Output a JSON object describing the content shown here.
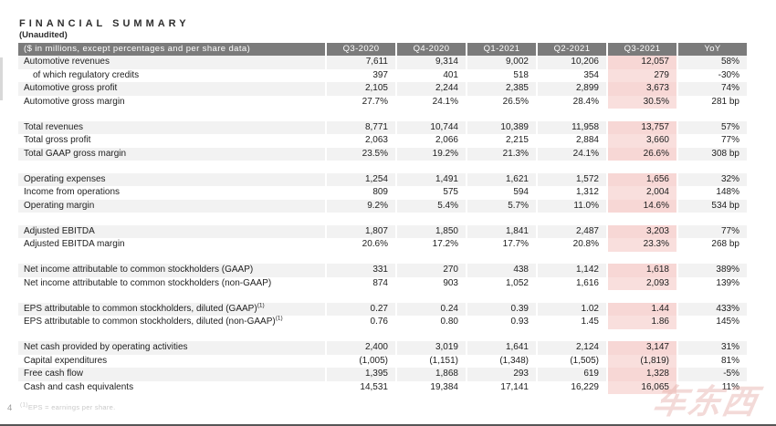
{
  "page_number": "4",
  "title": "FINANCIAL SUMMARY",
  "subtitle": "(Unaudited)",
  "footnote": {
    "marker": "(1)",
    "text": "EPS = earnings per share."
  },
  "watermark": {
    "text": "车东西"
  },
  "colors": {
    "header_bg": "#7b7b7b",
    "stripe_row": "#f2f2f2",
    "highlight_cell": "#f7d7d5",
    "text": "#1e1e1e"
  },
  "table": {
    "columns": [
      "($ in millions, except percentages and per share data)",
      "Q3-2020",
      "Q4-2020",
      "Q1-2021",
      "Q2-2021",
      "Q3-2021",
      "YoY"
    ],
    "highlight_column": "Q3-2021",
    "highlight_col_index": 4,
    "sections": [
      {
        "rows": [
          {
            "label": "Automotive revenues",
            "values": [
              "7,611",
              "9,314",
              "9,002",
              "10,206",
              "12,057",
              "58%"
            ]
          },
          {
            "label": "of which regulatory credits",
            "indent": true,
            "values": [
              "397",
              "401",
              "518",
              "354",
              "279",
              "-30%"
            ]
          },
          {
            "label": "Automotive gross profit",
            "values": [
              "2,105",
              "2,244",
              "2,385",
              "2,899",
              "3,673",
              "74%"
            ]
          },
          {
            "label": "Automotive gross margin",
            "values": [
              "27.7%",
              "24.1%",
              "26.5%",
              "28.4%",
              "30.5%",
              "281 bp"
            ]
          }
        ]
      },
      {
        "rows": [
          {
            "label": "Total revenues",
            "values": [
              "8,771",
              "10,744",
              "10,389",
              "11,958",
              "13,757",
              "57%"
            ]
          },
          {
            "label": "Total gross profit",
            "values": [
              "2,063",
              "2,066",
              "2,215",
              "2,884",
              "3,660",
              "77%"
            ]
          },
          {
            "label": "Total GAAP gross margin",
            "values": [
              "23.5%",
              "19.2%",
              "21.3%",
              "24.1%",
              "26.6%",
              "308 bp"
            ]
          }
        ]
      },
      {
        "rows": [
          {
            "label": "Operating expenses",
            "values": [
              "1,254",
              "1,491",
              "1,621",
              "1,572",
              "1,656",
              "32%"
            ]
          },
          {
            "label": "Income from operations",
            "values": [
              "809",
              "575",
              "594",
              "1,312",
              "2,004",
              "148%"
            ]
          },
          {
            "label": "Operating margin",
            "values": [
              "9.2%",
              "5.4%",
              "5.7%",
              "11.0%",
              "14.6%",
              "534 bp"
            ]
          }
        ]
      },
      {
        "rows": [
          {
            "label": "Adjusted EBITDA",
            "values": [
              "1,807",
              "1,850",
              "1,841",
              "2,487",
              "3,203",
              "77%"
            ]
          },
          {
            "label": "Adjusted EBITDA margin",
            "values": [
              "20.6%",
              "17.2%",
              "17.7%",
              "20.8%",
              "23.3%",
              "268 bp"
            ]
          }
        ]
      },
      {
        "rows": [
          {
            "label": "Net income attributable to common stockholders (GAAP)",
            "values": [
              "331",
              "270",
              "438",
              "1,142",
              "1,618",
              "389%"
            ]
          },
          {
            "label": "Net income attributable to common stockholders (non-GAAP)",
            "values": [
              "874",
              "903",
              "1,052",
              "1,616",
              "2,093",
              "139%"
            ]
          }
        ]
      },
      {
        "rows": [
          {
            "label": "EPS attributable to common stockholders, diluted (GAAP)",
            "footnote_marker": "(1)",
            "values": [
              "0.27",
              "0.24",
              "0.39",
              "1.02",
              "1.44",
              "433%"
            ]
          },
          {
            "label": "EPS attributable to common stockholders, diluted (non-GAAP)",
            "footnote_marker": "(1)",
            "values": [
              "0.76",
              "0.80",
              "0.93",
              "1.45",
              "1.86",
              "145%"
            ]
          }
        ]
      },
      {
        "rows": [
          {
            "label": "Net cash provided by operating activities",
            "values": [
              "2,400",
              "3,019",
              "1,641",
              "2,124",
              "3,147",
              "31%"
            ]
          },
          {
            "label": "Capital expenditures",
            "values": [
              "(1,005)",
              "(1,151)",
              "(1,348)",
              "(1,505)",
              "(1,819)",
              "81%"
            ]
          },
          {
            "label": "Free cash flow",
            "values": [
              "1,395",
              "1,868",
              "293",
              "619",
              "1,328",
              "-5%"
            ]
          },
          {
            "label": "Cash and cash equivalents",
            "values": [
              "14,531",
              "19,384",
              "17,141",
              "16,229",
              "16,065",
              "11%"
            ]
          }
        ]
      }
    ]
  }
}
